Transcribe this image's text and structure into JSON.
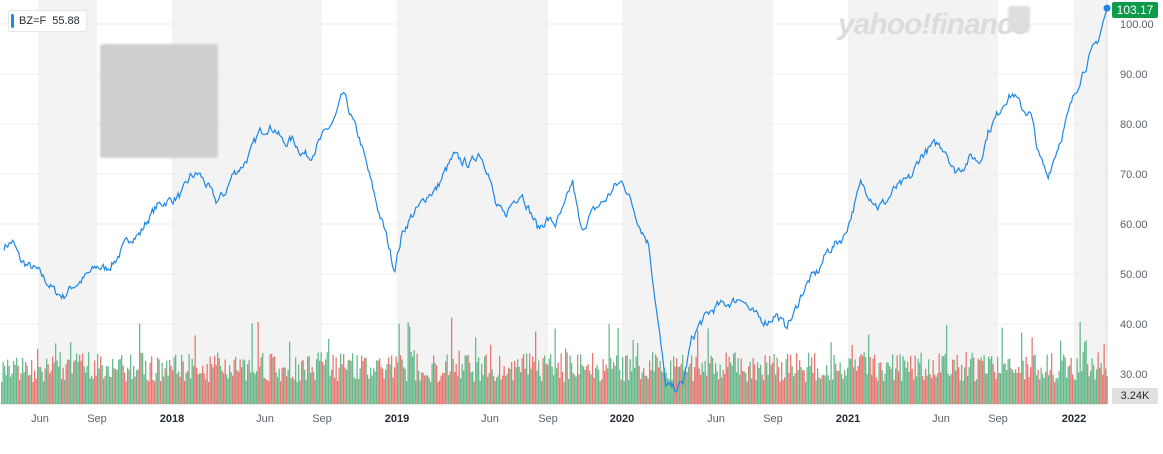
{
  "legend": {
    "symbol": "BZ=F",
    "value": "55.88"
  },
  "watermark": "yahoo!finance",
  "last_price_label": "103.17",
  "volume_label": "3.24K",
  "colors": {
    "line": "#1e88e5",
    "up": "#4caf7a",
    "down": "#e5635b",
    "band": "#f3f3f3",
    "price_tag": "#0f9a4b"
  },
  "chart_data": {
    "type": "line",
    "y_axis": {
      "ticks": [
        "100.00",
        "90.00",
        "80.00",
        "70.00",
        "60.00",
        "50.00",
        "40.00",
        "30.00"
      ],
      "range": [
        24,
        103.2
      ],
      "position": "right"
    },
    "x_axis": {
      "tick_labels": [
        "Jun",
        "Sep",
        "2018",
        "Jun",
        "Sep",
        "2019",
        "Jun",
        "Sep",
        "2020",
        "Jun",
        "Sep",
        "2021",
        "Jun",
        "Sep",
        "2022"
      ]
    },
    "series": [
      {
        "values": [
          55.5,
          56.5,
          52.5,
          51.5,
          50.5,
          48.5,
          46.5,
          45.5,
          47.5,
          48.5,
          50,
          51.5,
          51,
          52.5,
          55,
          57.5,
          58,
          61,
          63.5,
          64.5,
          65,
          66,
          69.5,
          70,
          67.5,
          64.5,
          66,
          70,
          71.5,
          74,
          78,
          79.5,
          79,
          76,
          77,
          74.5,
          73.5,
          76,
          78.5,
          81,
          86,
          81,
          76.5,
          70,
          63.5,
          58,
          51,
          58.5,
          61.5,
          63.5,
          66,
          67,
          70.5,
          73.5,
          72.5,
          72,
          74.5,
          71,
          63.5,
          61.5,
          64.5,
          66.5,
          62.5,
          59,
          61,
          60,
          63,
          68.5,
          58.5,
          61.5,
          63.5,
          65,
          67.5,
          68.5,
          64,
          59.5,
          56,
          41.5,
          27.5,
          27,
          28,
          36.5,
          40,
          42,
          43.5,
          44,
          44.5,
          45.5,
          42.5,
          41,
          40.5,
          42,
          39.5,
          41.5,
          46,
          49,
          50.5,
          54.5,
          56,
          57.5,
          62.5,
          68,
          66,
          63.5,
          64.5,
          67,
          68,
          69.5,
          73.5,
          75,
          76,
          75,
          70.5,
          71.5,
          73.5,
          72.5,
          78.5,
          81.5,
          85,
          86,
          83,
          82,
          73.5,
          69.5,
          74.5,
          79.5,
          85,
          90,
          93.5,
          97,
          103.17
        ]
      }
    ],
    "volume": {
      "label": "3.24K"
    },
    "grid": true,
    "legend_position": "top-left"
  }
}
